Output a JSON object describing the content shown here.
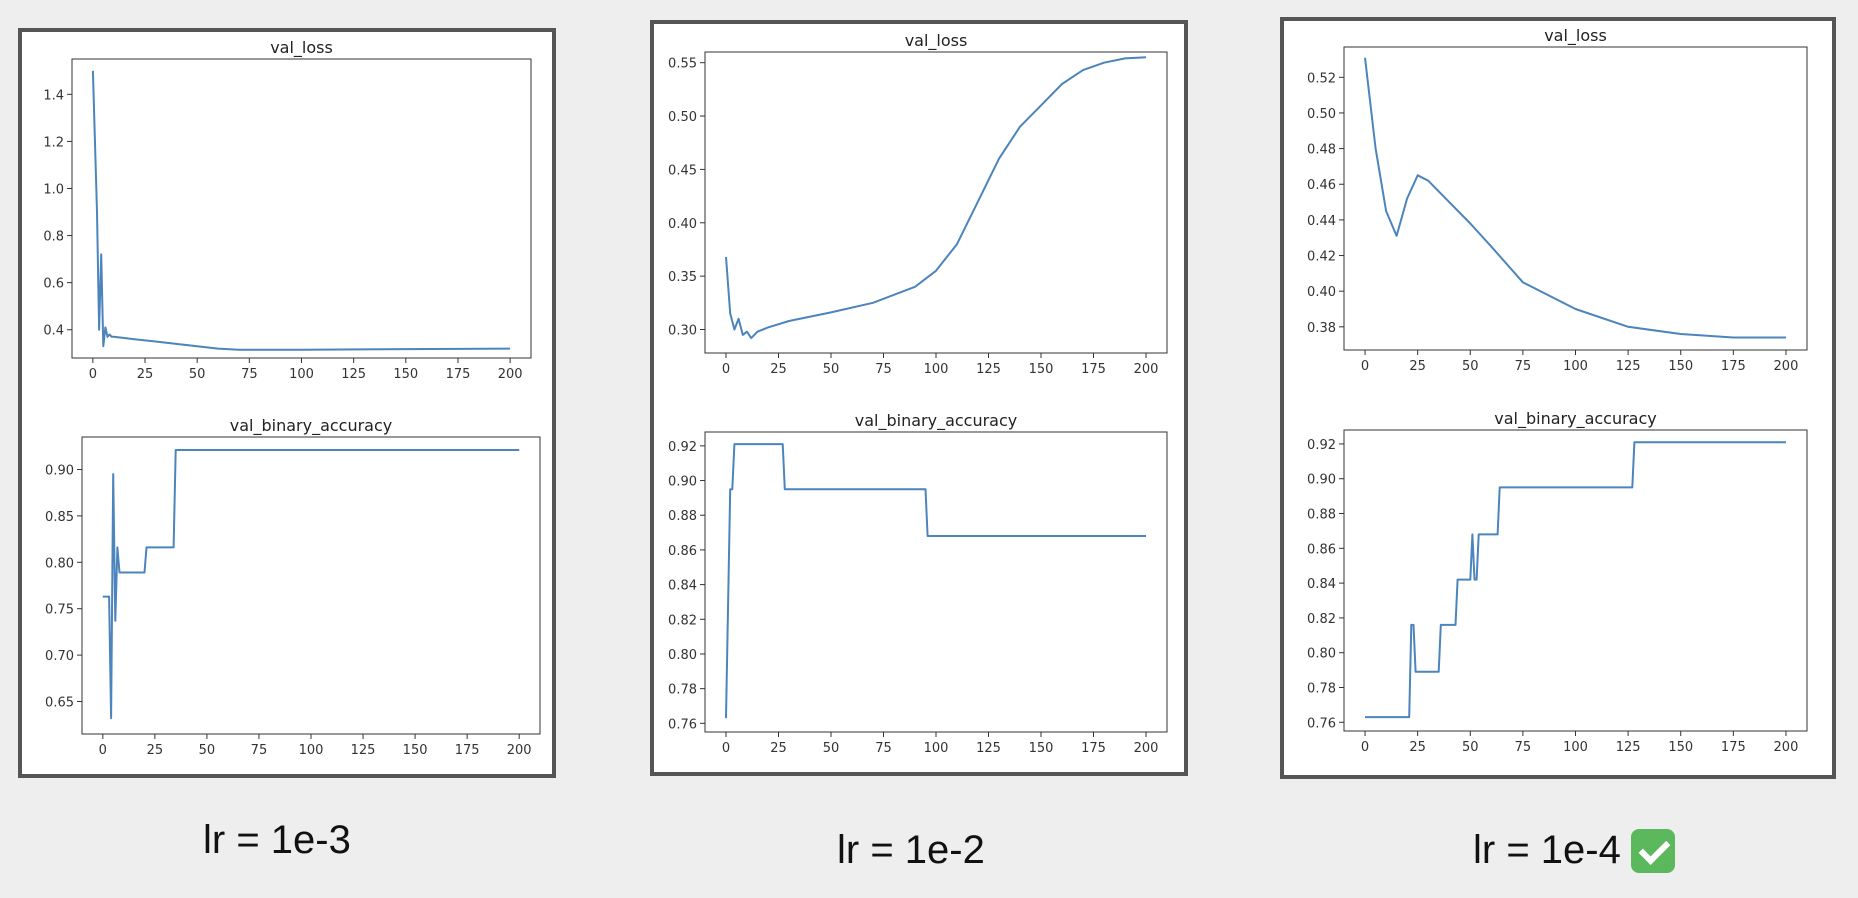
{
  "line_color": "#4c84bc",
  "panels": [
    {
      "caption": "lr = 1e-3",
      "check": false
    },
    {
      "caption": "lr = 1e-2",
      "check": false
    },
    {
      "caption": "lr = 1e-4",
      "check": true,
      "check_icon": "check-mark-icon"
    }
  ],
  "chart_data": [
    {
      "type": "line",
      "title": "val_loss",
      "xlabel": "",
      "ylabel": "",
      "xlim": [
        -10,
        210
      ],
      "ylim": [
        0.28,
        1.55
      ],
      "xticks": [
        0,
        25,
        50,
        75,
        100,
        125,
        150,
        175,
        200
      ],
      "yticks": [
        0.4,
        0.6,
        0.8,
        1.0,
        1.2,
        1.4
      ],
      "ytick_labels": [
        "0.4",
        "0.6",
        "0.8",
        "1.0",
        "1.2",
        "1.4"
      ],
      "series": [
        {
          "x": [
            0,
            2,
            3,
            4,
            5,
            6,
            7,
            8,
            9,
            10,
            15,
            20,
            30,
            40,
            50,
            60,
            70,
            80,
            100,
            150,
            200
          ],
          "y": [
            1.5,
            0.9,
            0.4,
            0.72,
            0.33,
            0.41,
            0.37,
            0.38,
            0.37,
            0.37,
            0.365,
            0.36,
            0.35,
            0.34,
            0.33,
            0.32,
            0.315,
            0.315,
            0.315,
            0.318,
            0.32
          ]
        }
      ]
    },
    {
      "type": "line",
      "title": "val_binary_accuracy",
      "xlabel": "",
      "ylabel": "",
      "xlim": [
        -10,
        210
      ],
      "ylim": [
        0.615,
        0.935
      ],
      "xticks": [
        0,
        25,
        50,
        75,
        100,
        125,
        150,
        175,
        200
      ],
      "yticks": [
        0.65,
        0.7,
        0.75,
        0.8,
        0.85,
        0.9
      ],
      "ytick_labels": [
        "0.65",
        "0.70",
        "0.75",
        "0.80",
        "0.85",
        "0.90"
      ],
      "series": [
        {
          "x": [
            0,
            3,
            4,
            5,
            6,
            7,
            8,
            9,
            10,
            11,
            20,
            21,
            34,
            35,
            200
          ],
          "y": [
            0.763,
            0.763,
            0.632,
            0.895,
            0.737,
            0.816,
            0.789,
            0.789,
            0.789,
            0.789,
            0.789,
            0.816,
            0.816,
            0.921,
            0.921
          ]
        }
      ]
    },
    {
      "type": "line",
      "title": "val_loss",
      "xlabel": "",
      "ylabel": "",
      "xlim": [
        -10,
        210
      ],
      "ylim": [
        0.278,
        0.56
      ],
      "xticks": [
        0,
        25,
        50,
        75,
        100,
        125,
        150,
        175,
        200
      ],
      "yticks": [
        0.3,
        0.35,
        0.4,
        0.45,
        0.5,
        0.55
      ],
      "ytick_labels": [
        "0.30",
        "0.35",
        "0.40",
        "0.45",
        "0.50",
        "0.55"
      ],
      "series": [
        {
          "x": [
            0,
            2,
            4,
            6,
            8,
            10,
            12,
            15,
            20,
            30,
            50,
            70,
            90,
            100,
            110,
            120,
            130,
            140,
            150,
            160,
            170,
            180,
            190,
            200
          ],
          "y": [
            0.368,
            0.315,
            0.3,
            0.31,
            0.295,
            0.298,
            0.292,
            0.298,
            0.302,
            0.308,
            0.316,
            0.325,
            0.34,
            0.355,
            0.38,
            0.42,
            0.46,
            0.49,
            0.51,
            0.53,
            0.543,
            0.55,
            0.554,
            0.555
          ]
        }
      ]
    },
    {
      "type": "line",
      "title": "val_binary_accuracy",
      "xlabel": "",
      "ylabel": "",
      "xlim": [
        -10,
        210
      ],
      "ylim": [
        0.755,
        0.928
      ],
      "xticks": [
        0,
        25,
        50,
        75,
        100,
        125,
        150,
        175,
        200
      ],
      "yticks": [
        0.76,
        0.78,
        0.8,
        0.82,
        0.84,
        0.86,
        0.88,
        0.9,
        0.92
      ],
      "ytick_labels": [
        "0.76",
        "0.78",
        "0.80",
        "0.82",
        "0.84",
        "0.86",
        "0.88",
        "0.90",
        "0.92"
      ],
      "series": [
        {
          "x": [
            0,
            2,
            3,
            4,
            5,
            27,
            28,
            95,
            96,
            200
          ],
          "y": [
            0.763,
            0.895,
            0.895,
            0.921,
            0.921,
            0.921,
            0.895,
            0.895,
            0.868,
            0.868
          ]
        }
      ]
    },
    {
      "type": "line",
      "title": "val_loss",
      "xlabel": "",
      "ylabel": "",
      "xlim": [
        -10,
        210
      ],
      "ylim": [
        0.367,
        0.537
      ],
      "xticks": [
        0,
        25,
        50,
        75,
        100,
        125,
        150,
        175,
        200
      ],
      "yticks": [
        0.38,
        0.4,
        0.42,
        0.44,
        0.46,
        0.48,
        0.5,
        0.52
      ],
      "ytick_labels": [
        "0.38",
        "0.40",
        "0.42",
        "0.44",
        "0.46",
        "0.48",
        "0.50",
        "0.52"
      ],
      "series": [
        {
          "x": [
            0,
            5,
            10,
            15,
            20,
            25,
            30,
            40,
            50,
            60,
            75,
            100,
            125,
            150,
            175,
            200
          ],
          "y": [
            0.531,
            0.48,
            0.445,
            0.431,
            0.452,
            0.465,
            0.462,
            0.45,
            0.438,
            0.425,
            0.405,
            0.39,
            0.38,
            0.376,
            0.374,
            0.374
          ]
        }
      ]
    },
    {
      "type": "line",
      "title": "val_binary_accuracy",
      "xlabel": "",
      "ylabel": "",
      "xlim": [
        -10,
        210
      ],
      "ylim": [
        0.755,
        0.928
      ],
      "xticks": [
        0,
        25,
        50,
        75,
        100,
        125,
        150,
        175,
        200
      ],
      "yticks": [
        0.76,
        0.78,
        0.8,
        0.82,
        0.84,
        0.86,
        0.88,
        0.9,
        0.92
      ],
      "ytick_labels": [
        "0.76",
        "0.78",
        "0.80",
        "0.82",
        "0.84",
        "0.86",
        "0.88",
        "0.90",
        "0.92"
      ],
      "series": [
        {
          "x": [
            0,
            21,
            22,
            23,
            24,
            25,
            35,
            36,
            43,
            44,
            50,
            51,
            52,
            53,
            54,
            63,
            64,
            127,
            128,
            200
          ],
          "y": [
            0.763,
            0.763,
            0.816,
            0.816,
            0.789,
            0.789,
            0.789,
            0.816,
            0.816,
            0.842,
            0.842,
            0.868,
            0.842,
            0.842,
            0.868,
            0.868,
            0.895,
            0.895,
            0.921,
            0.921
          ]
        }
      ]
    }
  ]
}
